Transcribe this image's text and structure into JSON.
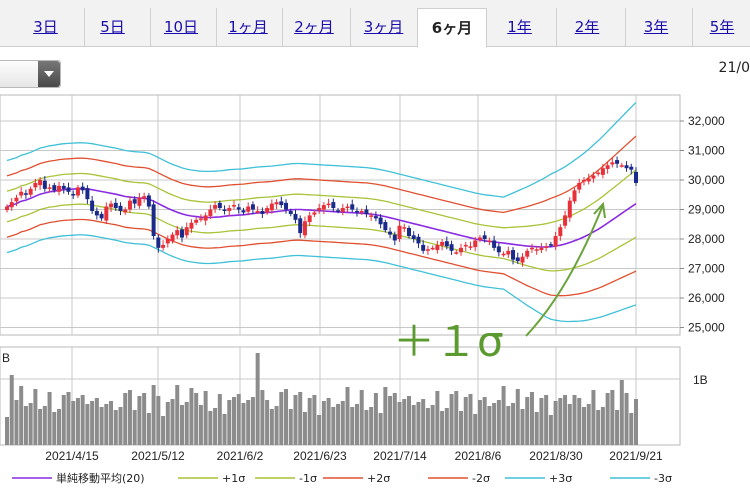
{
  "tabs": [
    {
      "label": "3日",
      "active": false
    },
    {
      "label": "5日",
      "active": false
    },
    {
      "label": "10日",
      "active": false
    },
    {
      "label": "1ヶ月",
      "active": false
    },
    {
      "label": "2ヶ月",
      "active": false
    },
    {
      "label": "3ヶ月",
      "active": false
    },
    {
      "label": "6ヶ月",
      "active": true
    },
    {
      "label": "1年",
      "active": false
    },
    {
      "label": "2年",
      "active": false
    },
    {
      "label": "3年",
      "active": false
    },
    {
      "label": "5年",
      "active": false
    }
  ],
  "header": {
    "date": "21/0"
  },
  "annotation": {
    "text": "＋１σ",
    "color": "#5a9a2e"
  },
  "volume_axis_label": "1B",
  "volume_axis_label_left": "B",
  "legend": {
    "items": [
      {
        "label": "単純移動平均(20)",
        "color": "#8a2be2"
      },
      {
        "label": "+1σ",
        "color": "#a8c43a"
      },
      {
        "label": "-1σ",
        "color": "#a8c43a"
      },
      {
        "label": "+2σ",
        "color": "#e05030"
      },
      {
        "label": "-2σ",
        "color": "#e05030"
      },
      {
        "label": "+3σ",
        "color": "#40c0d8"
      },
      {
        "label": "-3σ",
        "color": "#40c0d8"
      }
    ]
  },
  "colors": {
    "up": "#e8303a",
    "down": "#1a2a8a",
    "volume": "#8c8c8c",
    "sma": "#8a2be2",
    "s1": "#a8c43a",
    "s2": "#e05030",
    "s3": "#40c0d8",
    "grid": "#c8c8c8"
  },
  "chart_data": {
    "type": "candlestick",
    "y_ticks": [
      "32,000",
      "31,000",
      "30,000",
      "29,000",
      "28,000",
      "27,000",
      "26,000",
      "25,000"
    ],
    "ylim": [
      24900,
      32900
    ],
    "x_ticks": [
      "2021/4/15",
      "2021/5/12",
      "2021/6/2",
      "2021/6/23",
      "2021/7/14",
      "2021/8/6",
      "2021/8/30",
      "2021/9/21"
    ],
    "close": [
      29100,
      29250,
      29400,
      29600,
      29500,
      29700,
      29900,
      30000,
      29700,
      29750,
      29650,
      29800,
      29700,
      29600,
      29500,
      29750,
      29650,
      29350,
      28950,
      28800,
      28700,
      29100,
      29200,
      29050,
      28950,
      29000,
      29300,
      29200,
      29400,
      29450,
      29100,
      28100,
      27700,
      27800,
      28000,
      28150,
      28300,
      28050,
      28400,
      28550,
      28650,
      28700,
      28800,
      29000,
      29150,
      29050,
      28950,
      29050,
      29150,
      29000,
      28900,
      29100,
      29000,
      28950,
      28850,
      29050,
      29200,
      29250,
      29150,
      29000,
      28850,
      28650,
      28200,
      28600,
      28800,
      28900,
      29050,
      29150,
      29200,
      29050,
      28950,
      29050,
      29100,
      29000,
      28900,
      28950,
      28850,
      28800,
      28700,
      28500,
      28300,
      28150,
      27950,
      28450,
      28400,
      28100,
      28000,
      27850,
      27600,
      27650,
      27700,
      27800,
      27900,
      27750,
      27600,
      27550,
      27700,
      27800,
      27750,
      27950,
      28050,
      28000,
      27950,
      27700,
      27550,
      27500,
      27600,
      27300,
      27250,
      27400,
      27600,
      27700,
      27650,
      27700,
      27750,
      27800,
      28100,
      28400,
      28800,
      29300,
      29650,
      29900,
      30000,
      30050,
      30150,
      30250,
      30400,
      30500,
      30600,
      30550,
      30500,
      30400,
      30350,
      29900
    ],
    "sma20": [
      29100,
      29150,
      29200,
      29280,
      29320,
      29380,
      29450,
      29520,
      29560,
      29600,
      29620,
      29650,
      29670,
      29680,
      29690,
      29700,
      29700,
      29690,
      29670,
      29640,
      29610,
      29580,
      29550,
      29520,
      29480,
      29440,
      29420,
      29400,
      29390,
      29380,
      29350,
      29280,
      29200,
      29120,
      29040,
      28970,
      28910,
      28850,
      28810,
      28780,
      28760,
      28740,
      28730,
      28730,
      28740,
      28750,
      28770,
      28790,
      28800,
      28810,
      28820,
      28840,
      28860,
      28880,
      28890,
      28900,
      28910,
      28930,
      28950,
      28970,
      28990,
      29000,
      29000,
      28990,
      28980,
      28970,
      28960,
      28950,
      28940,
      28930,
      28920,
      28910,
      28900,
      28890,
      28880,
      28870,
      28860,
      28840,
      28820,
      28790,
      28760,
      28720,
      28680,
      28640,
      28600,
      28560,
      28520,
      28480,
      28440,
      28400,
      28360,
      28320,
      28280,
      28240,
      28200,
      28160,
      28120,
      28080,
      28040,
      28000,
      27970,
      27940,
      27920,
      27900,
      27880,
      27860,
      27840,
      27820,
      27800,
      27780,
      27760,
      27750,
      27740,
      27730,
      27730,
      27740,
      27760,
      27790,
      27830,
      27880,
      27940,
      28000,
      28070,
      28150,
      28240,
      28330,
      28430,
      28540,
      28650,
      28760,
      28870,
      28980,
      29090,
      29200
    ]
  }
}
